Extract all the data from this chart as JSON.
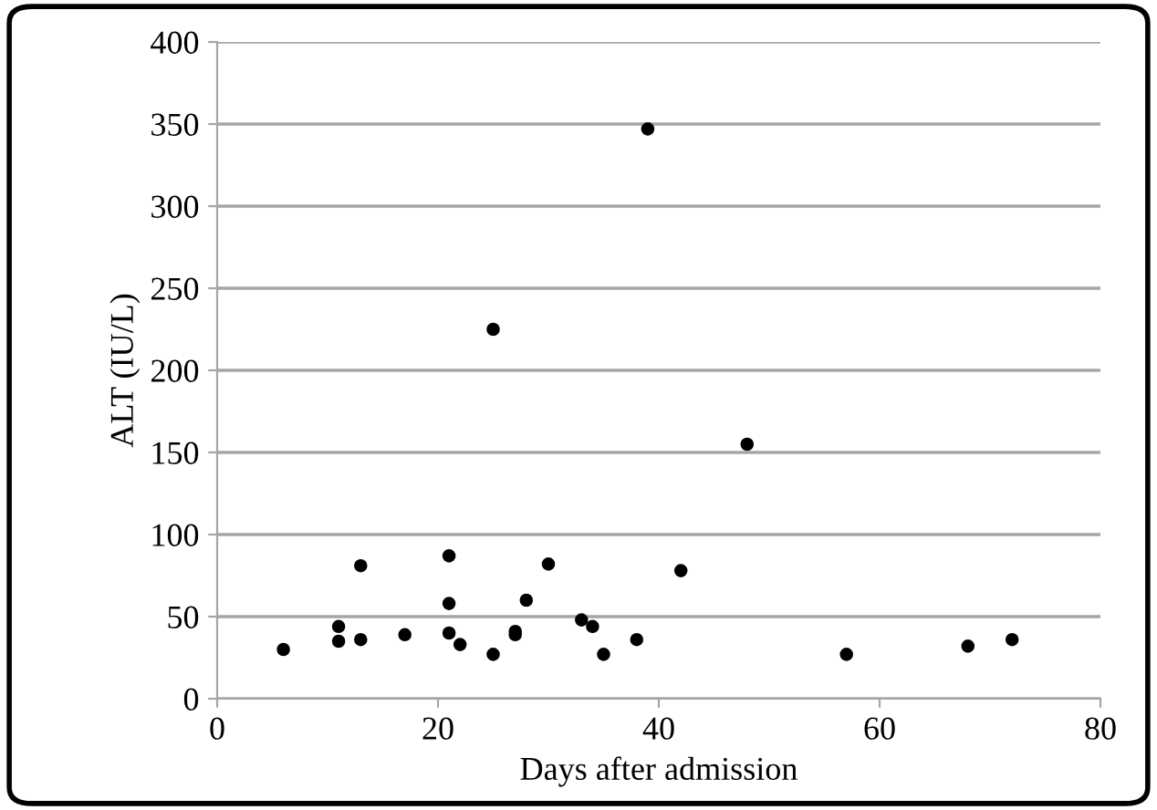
{
  "chart_data": {
    "type": "scatter",
    "xlabel": "Days after admission",
    "ylabel": "ALT (IU/L)",
    "x": [
      6,
      11,
      11,
      13,
      13,
      17,
      21,
      21,
      21,
      22,
      25,
      25,
      27,
      27,
      28,
      30,
      33,
      34,
      35,
      38,
      39,
      42,
      48,
      57,
      68,
      72
    ],
    "values": [
      30,
      44,
      35,
      81,
      36,
      39,
      87,
      58,
      40,
      33,
      225,
      27,
      41,
      39,
      60,
      82,
      48,
      44,
      27,
      36,
      347,
      78,
      155,
      27,
      32,
      36
    ],
    "color": "#000000",
    "marker": "circle",
    "xlim": [
      0,
      80
    ],
    "xticks": [
      0,
      20,
      40,
      60,
      80
    ],
    "ylim": [
      0,
      400
    ],
    "yticks": [
      0,
      50,
      100,
      150,
      200,
      250,
      300,
      350,
      400
    ],
    "grid": "y"
  }
}
